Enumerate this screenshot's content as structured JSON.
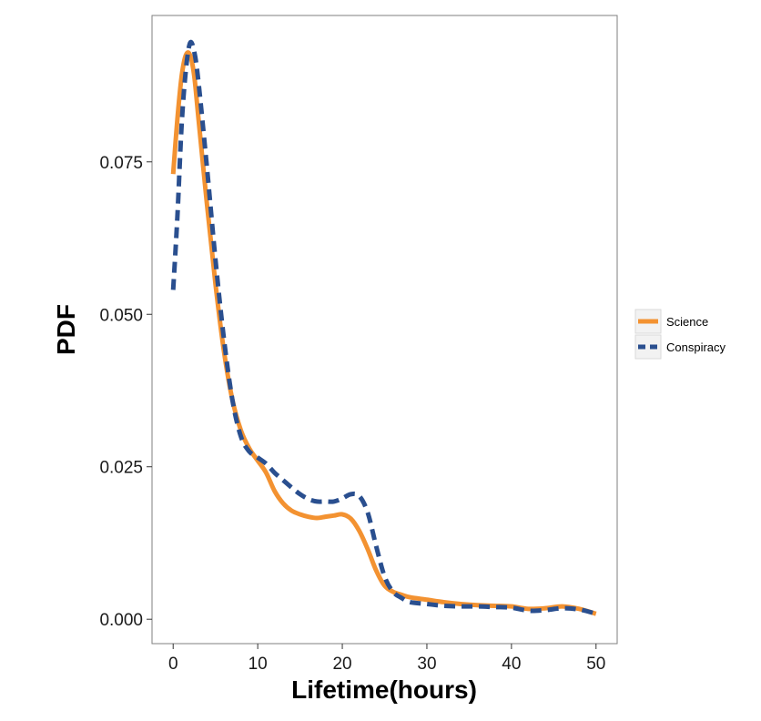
{
  "chart_data": {
    "type": "line",
    "title": "",
    "xlabel": "Lifetime(hours)",
    "ylabel": "PDF",
    "xlim": [
      -2.5,
      52.5
    ],
    "ylim": [
      -0.004,
      0.099
    ],
    "x_ticks": [
      0,
      10,
      20,
      30,
      40,
      50
    ],
    "x_tick_labels": [
      "0",
      "10",
      "20",
      "30",
      "40",
      "50"
    ],
    "y_ticks": [
      0.0,
      0.025,
      0.05,
      0.075
    ],
    "y_tick_labels": [
      "0.000",
      "0.025",
      "0.050",
      "0.075"
    ],
    "grid": false,
    "legend_position": "right",
    "series": [
      {
        "name": "Science",
        "color": "#f39231",
        "dash": "solid",
        "points": [
          [
            0,
            0.073
          ],
          [
            0.5,
            0.082
          ],
          [
            1,
            0.089
          ],
          [
            1.5,
            0.0925
          ],
          [
            2,
            0.0925
          ],
          [
            2.5,
            0.089
          ],
          [
            3,
            0.082
          ],
          [
            4,
            0.068
          ],
          [
            5,
            0.055
          ],
          [
            6,
            0.044
          ],
          [
            7,
            0.036
          ],
          [
            8,
            0.031
          ],
          [
            9,
            0.028
          ],
          [
            10,
            0.026
          ],
          [
            11,
            0.024
          ],
          [
            12,
            0.021
          ],
          [
            13,
            0.019
          ],
          [
            14,
            0.0178
          ],
          [
            15,
            0.0172
          ],
          [
            16,
            0.0168
          ],
          [
            17,
            0.0166
          ],
          [
            18,
            0.0168
          ],
          [
            19,
            0.017
          ],
          [
            20,
            0.0172
          ],
          [
            21,
            0.0165
          ],
          [
            22,
            0.0145
          ],
          [
            23,
            0.0115
          ],
          [
            24,
            0.008
          ],
          [
            25,
            0.0055
          ],
          [
            26,
            0.0045
          ],
          [
            27,
            0.004
          ],
          [
            28,
            0.0036
          ],
          [
            30,
            0.0032
          ],
          [
            32,
            0.0028
          ],
          [
            34,
            0.0025
          ],
          [
            36,
            0.0023
          ],
          [
            38,
            0.0022
          ],
          [
            40,
            0.0021
          ],
          [
            42,
            0.0017
          ],
          [
            44,
            0.0018
          ],
          [
            46,
            0.0021
          ],
          [
            48,
            0.0017
          ],
          [
            50,
            0.0009
          ]
        ]
      },
      {
        "name": "Conspiracy",
        "color": "#2a4f8f",
        "dash": "dashed",
        "points": [
          [
            0,
            0.054
          ],
          [
            0.5,
            0.066
          ],
          [
            1,
            0.081
          ],
          [
            1.5,
            0.09
          ],
          [
            2,
            0.0945
          ],
          [
            2.5,
            0.093
          ],
          [
            3,
            0.088
          ],
          [
            4,
            0.074
          ],
          [
            5,
            0.059
          ],
          [
            6,
            0.046
          ],
          [
            7,
            0.036
          ],
          [
            8,
            0.03
          ],
          [
            9,
            0.0275
          ],
          [
            10,
            0.0265
          ],
          [
            11,
            0.0255
          ],
          [
            12,
            0.024
          ],
          [
            13,
            0.0228
          ],
          [
            14,
            0.0216
          ],
          [
            15,
            0.0205
          ],
          [
            16,
            0.0197
          ],
          [
            17,
            0.0193
          ],
          [
            18,
            0.0193
          ],
          [
            19,
            0.0193
          ],
          [
            20,
            0.0198
          ],
          [
            21,
            0.0205
          ],
          [
            22,
            0.0202
          ],
          [
            23,
            0.0175
          ],
          [
            24,
            0.012
          ],
          [
            25,
            0.007
          ],
          [
            26,
            0.0045
          ],
          [
            27,
            0.0035
          ],
          [
            28,
            0.0028
          ],
          [
            30,
            0.0025
          ],
          [
            32,
            0.0022
          ],
          [
            34,
            0.0021
          ],
          [
            36,
            0.0021
          ],
          [
            38,
            0.002
          ],
          [
            40,
            0.0019
          ],
          [
            42,
            0.0014
          ],
          [
            44,
            0.0015
          ],
          [
            46,
            0.0018
          ],
          [
            48,
            0.0016
          ],
          [
            50,
            0.0009
          ]
        ]
      }
    ]
  }
}
